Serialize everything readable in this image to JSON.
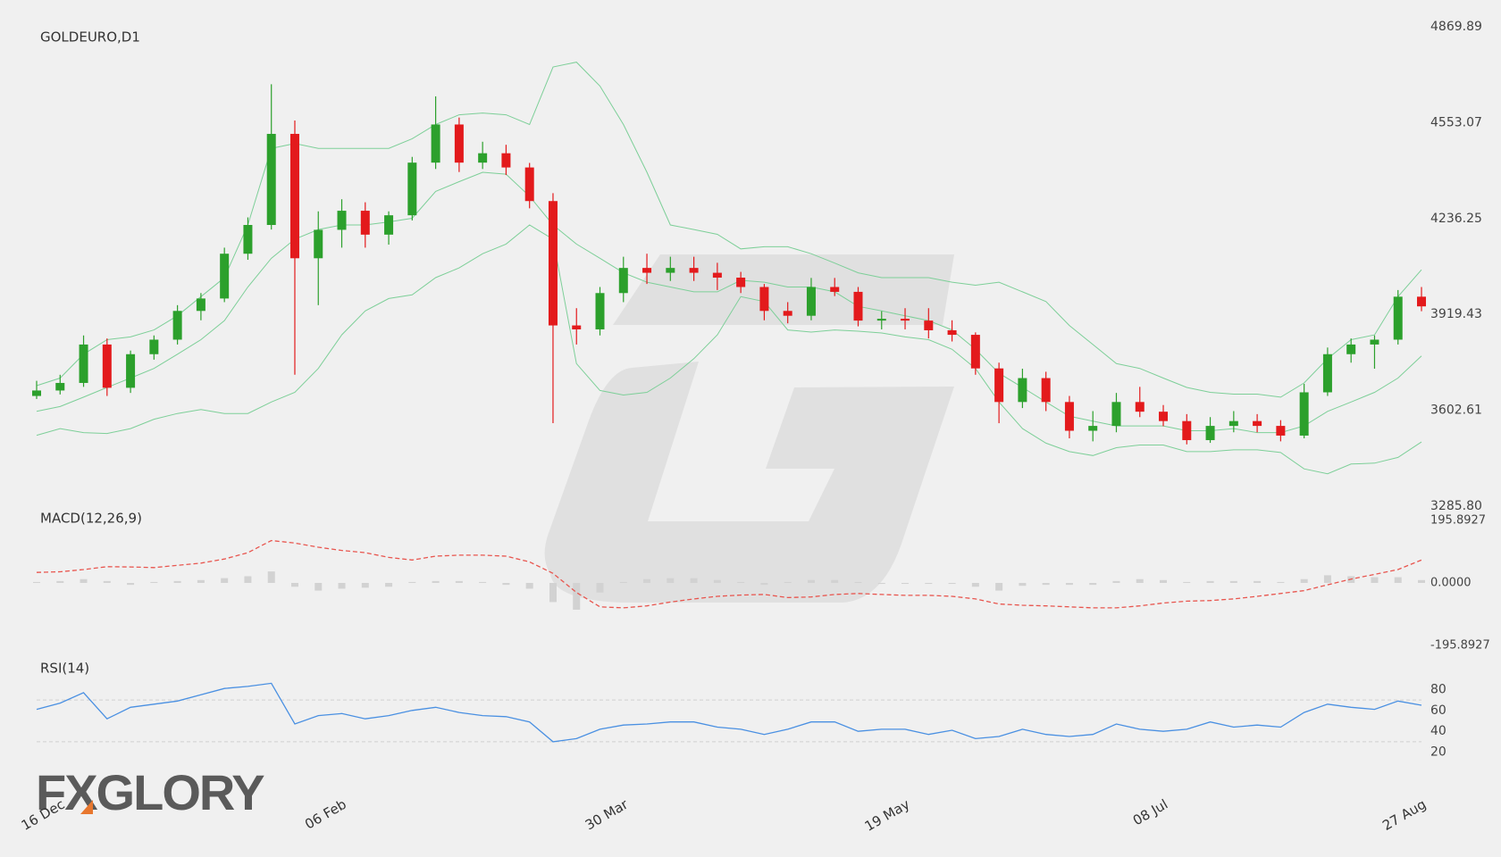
{
  "logo": "FXGLORY",
  "chart_data": [
    {
      "type": "candlestick",
      "title": "GOLDEURO,D1",
      "open": [
        3650,
        3668,
        3693,
        3820,
        3677,
        3788,
        3836,
        3931,
        3972,
        4120,
        4215,
        4516,
        4105,
        4199,
        4262,
        4183,
        4247,
        4421,
        4547,
        4421,
        4452,
        4405,
        4294,
        3883,
        3870,
        3990,
        4073,
        4057,
        4073,
        4057,
        4041,
        4010,
        3931,
        3915,
        4010,
        3994,
        3899,
        3905,
        3899,
        3867,
        3852,
        3741,
        3630,
        3709,
        3630,
        3535,
        3551,
        3630,
        3598,
        3567,
        3504,
        3551,
        3567,
        3551,
        3519,
        3662,
        3788,
        3820,
        3836,
        3978
      ],
      "high": [
        3700,
        3720,
        3850,
        3840,
        3800,
        3850,
        3950,
        3990,
        4140,
        4240,
        4680,
        4560,
        4260,
        4300,
        4290,
        4260,
        4440,
        4640,
        4570,
        4490,
        4480,
        4420,
        4320,
        3940,
        4010,
        4110,
        4120,
        4110,
        4110,
        4090,
        4060,
        4020,
        3960,
        4040,
        4040,
        4010,
        3930,
        3940,
        3940,
        3900,
        3860,
        3760,
        3740,
        3730,
        3650,
        3600,
        3660,
        3680,
        3620,
        3590,
        3580,
        3600,
        3590,
        3570,
        3690,
        3810,
        3840,
        3850,
        4000,
        4010
      ],
      "low": [
        3640,
        3655,
        3680,
        3650,
        3660,
        3770,
        3820,
        3900,
        3960,
        4100,
        4200,
        3720,
        3950,
        4140,
        4140,
        4150,
        4230,
        4400,
        4390,
        4400,
        4380,
        4270,
        3560,
        3820,
        3850,
        3960,
        4020,
        4030,
        4030,
        4000,
        3990,
        3900,
        3890,
        3900,
        3980,
        3880,
        3870,
        3870,
        3840,
        3830,
        3720,
        3560,
        3610,
        3600,
        3510,
        3500,
        3530,
        3580,
        3550,
        3490,
        3495,
        3530,
        3530,
        3500,
        3510,
        3650,
        3760,
        3740,
        3820,
        3930
      ],
      "close": [
        3668,
        3693,
        3820,
        3677,
        3788,
        3836,
        3931,
        3972,
        4120,
        4215,
        4516,
        4105,
        4199,
        4262,
        4183,
        4247,
        4421,
        4547,
        4421,
        4452,
        4405,
        4294,
        3883,
        3870,
        3990,
        4073,
        4057,
        4073,
        4057,
        4041,
        4010,
        3931,
        3915,
        4010,
        3994,
        3899,
        3905,
        3899,
        3867,
        3852,
        3741,
        3630,
        3709,
        3630,
        3535,
        3551,
        3630,
        3598,
        3567,
        3504,
        3551,
        3567,
        3551,
        3519,
        3662,
        3788,
        3820,
        3836,
        3978,
        3946
      ],
      "up_color": "#2ca02c",
      "down_color": "#e31a1c",
      "series": [
        {
          "color": "#7dcf98",
          "values": [
            3684,
            3709,
            3788,
            3836,
            3845,
            3868,
            3915,
            3978,
            4041,
            4215,
            4468,
            4484,
            4468,
            4468,
            4468,
            4468,
            4500,
            4547,
            4579,
            4585,
            4579,
            4547,
            4737,
            4753,
            4674,
            4547,
            4389,
            4215,
            4200,
            4184,
            4136,
            4143,
            4143,
            4120,
            4089,
            4057,
            4041,
            4041,
            4041,
            4026,
            4016,
            4026,
            3994,
            3962,
            3883,
            3820,
            3757,
            3741,
            3709,
            3678,
            3662,
            3656,
            3656,
            3646,
            3693,
            3773,
            3836,
            3852,
            3978,
            4067
          ]
        },
        {
          "color": "#7dcf98",
          "values": [
            3599,
            3615,
            3646,
            3678,
            3709,
            3741,
            3788,
            3836,
            3899,
            4010,
            4105,
            4168,
            4200,
            4215,
            4215,
            4225,
            4237,
            4326,
            4358,
            4389,
            4383,
            4310,
            4215,
            4152,
            4105,
            4057,
            4026,
            4010,
            3994,
            3994,
            4032,
            4026,
            4010,
            4010,
            3994,
            3946,
            3931,
            3915,
            3899,
            3868,
            3804,
            3725,
            3678,
            3630,
            3583,
            3567,
            3551,
            3551,
            3551,
            3535,
            3535,
            3542,
            3529,
            3529,
            3551,
            3599,
            3630,
            3662,
            3709,
            3782
          ]
        },
        {
          "color": "#7dcf98",
          "values": [
            3520,
            3542,
            3529,
            3526,
            3542,
            3573,
            3592,
            3605,
            3592,
            3592,
            3630,
            3662,
            3741,
            3852,
            3931,
            3972,
            3984,
            4041,
            4073,
            4120,
            4152,
            4215,
            4168,
            3757,
            3668,
            3653,
            3662,
            3709,
            3773,
            3852,
            3978,
            3962,
            3868,
            3861,
            3868,
            3864,
            3858,
            3845,
            3836,
            3804,
            3741,
            3630,
            3542,
            3494,
            3466,
            3453,
            3479,
            3488,
            3488,
            3466,
            3466,
            3472,
            3472,
            3463,
            3409,
            3393,
            3425,
            3428,
            3447,
            3498
          ]
        }
      ],
      "ylim": [
        3285.8,
        4869.89
      ],
      "yticks": [
        {
          "value": 3285.8,
          "label": "3285.80"
        },
        3602.61,
        3919.43,
        4236.25,
        4553.07,
        4869.89
      ]
    },
    {
      "type": "macd",
      "title": "MACD(12,26,9)",
      "values": [
        3,
        6,
        12,
        6,
        -6,
        3,
        6,
        9,
        15,
        21,
        36,
        -12,
        -24,
        -18,
        -15,
        -12,
        3,
        6,
        6,
        3,
        -6,
        -18,
        -60,
        -84,
        -30,
        3,
        12,
        15,
        15,
        9,
        3,
        -6,
        3,
        9,
        9,
        3,
        -3,
        -3,
        -3,
        -3,
        -12,
        -24,
        -9,
        -6,
        -6,
        -6,
        6,
        12,
        9,
        3,
        6,
        6,
        6,
        3,
        12,
        24,
        21,
        18,
        18,
        9
      ],
      "color": "#d2d2d2",
      "series": [
        {
          "color": "#e8554e",
          "dash": true,
          "values": [
            33,
            35,
            42,
            51,
            50,
            48,
            55,
            62,
            75,
            95,
            133,
            125,
            112,
            102,
            95,
            80,
            72,
            84,
            87,
            87,
            84,
            66,
            30,
            -30,
            -75,
            -78,
            -72,
            -60,
            -50,
            -42,
            -38,
            -36,
            -46,
            -44,
            -36,
            -33,
            -36,
            -39,
            -39,
            -42,
            -50,
            -66,
            -70,
            -72,
            -75,
            -78,
            -78,
            -72,
            -63,
            -57,
            -55,
            -50,
            -42,
            -33,
            -24,
            -6,
            12,
            27,
            42,
            72
          ]
        }
      ],
      "ylim": [
        -195.8927,
        195.8927
      ],
      "yticks": [
        -195.8927,
        {
          "value": 0,
          "label": "0.0000"
        },
        195.8927
      ]
    },
    {
      "type": "line",
      "title": "RSI(14)",
      "categories": [
        null,
        "16 Dec",
        null,
        null,
        null,
        null,
        null,
        null,
        null,
        null,
        null,
        null,
        null,
        "06 Feb",
        null,
        null,
        null,
        null,
        null,
        null,
        null,
        null,
        null,
        null,
        null,
        "30 Mar",
        null,
        null,
        null,
        null,
        null,
        null,
        null,
        null,
        null,
        null,
        null,
        "19 May",
        null,
        null,
        null,
        null,
        null,
        null,
        null,
        null,
        null,
        null,
        "08 Jul",
        null,
        null,
        null,
        null,
        null,
        null,
        null,
        null,
        null,
        null,
        "27 Aug"
      ],
      "values": [
        61,
        67,
        77,
        52,
        63,
        66,
        69,
        75,
        81,
        83,
        86,
        47,
        55,
        57,
        52,
        55,
        60,
        63,
        58,
        55,
        54,
        49,
        30,
        33,
        42,
        46,
        47,
        49,
        49,
        44,
        42,
        37,
        42,
        49,
        49,
        40,
        42,
        42,
        37,
        41,
        33,
        35,
        42,
        37,
        35,
        37,
        47,
        42,
        40,
        42,
        49,
        44,
        46,
        44,
        58,
        66,
        63,
        61,
        69,
        65
      ],
      "color": "#4a90e2",
      "levels": [
        70,
        30
      ],
      "ylim": [
        0,
        100
      ],
      "yticks": [
        20,
        40,
        60,
        80
      ]
    }
  ]
}
